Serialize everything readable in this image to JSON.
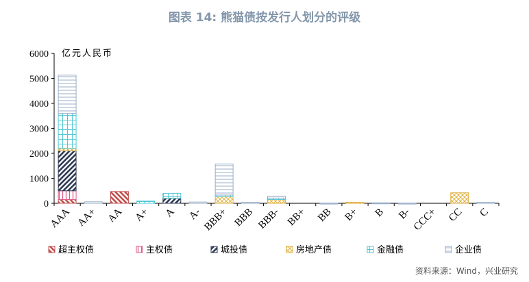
{
  "chart_data": {
    "type": "bar",
    "stacked": true,
    "title": "图表 14: 熊猫债按发行人划分的评级",
    "unit_label": "亿元人民币",
    "source": "资料来源：Wind，兴业研究",
    "ylim": [
      0,
      6000
    ],
    "yticks": [
      0,
      1000,
      2000,
      3000,
      4000,
      5000,
      6000
    ],
    "categories": [
      "AAA",
      "AA+",
      "AA",
      "A+",
      "A",
      "A-",
      "BBB+",
      "BBB",
      "BBB-",
      "BB+",
      "BB",
      "B+",
      "B",
      "B-",
      "CCC+",
      "CC",
      "C"
    ],
    "legend_position": "bottom",
    "series": [
      {
        "name": "超主权债",
        "color": "#c0504d",
        "pattern": "diag-left",
        "values": [
          150,
          0,
          470,
          0,
          0,
          0,
          0,
          0,
          0,
          0,
          0,
          0,
          0,
          0,
          0,
          0,
          0
        ]
      },
      {
        "name": "主权债",
        "color": "#e05a8a",
        "pattern": "vertical",
        "values": [
          350,
          0,
          0,
          0,
          0,
          0,
          0,
          0,
          0,
          0,
          0,
          0,
          0,
          0,
          0,
          0,
          0
        ]
      },
      {
        "name": "城投债",
        "color": "#2f3a54",
        "pattern": "diag-right",
        "values": [
          1600,
          0,
          0,
          0,
          200,
          0,
          0,
          0,
          0,
          0,
          0,
          0,
          0,
          0,
          0,
          0,
          0
        ]
      },
      {
        "name": "房地产债",
        "color": "#e0b040",
        "pattern": "cross",
        "values": [
          100,
          0,
          0,
          0,
          0,
          0,
          270,
          0,
          150,
          0,
          0,
          40,
          0,
          0,
          0,
          420,
          0
        ]
      },
      {
        "name": "金融债",
        "color": "#4fc7d4",
        "pattern": "grid",
        "values": [
          1400,
          0,
          0,
          90,
          200,
          0,
          60,
          0,
          60,
          0,
          0,
          0,
          0,
          0,
          0,
          0,
          0
        ]
      },
      {
        "name": "企业债",
        "color": "#9aaec8",
        "pattern": "hlines",
        "values": [
          1530,
          60,
          0,
          0,
          0,
          50,
          1240,
          40,
          70,
          0,
          10,
          0,
          20,
          10,
          0,
          0,
          40
        ]
      }
    ]
  }
}
